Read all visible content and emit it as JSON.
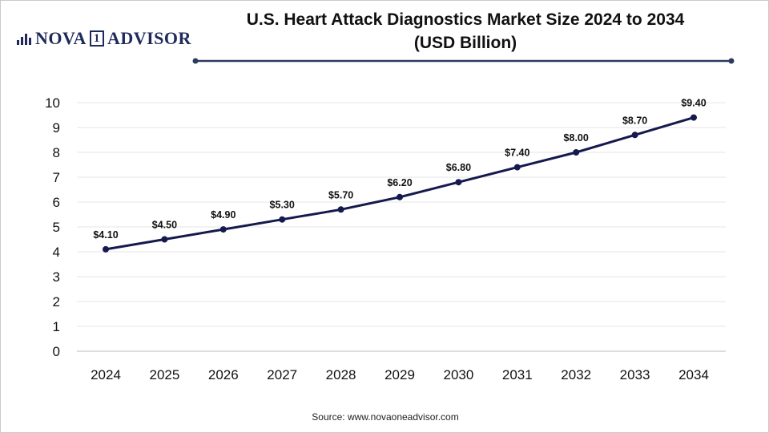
{
  "brand": {
    "logo_part1": "NOVA",
    "logo_part2": "1",
    "logo_part3": "ADVISOR"
  },
  "colors": {
    "line": "#151a4e",
    "grid": "#e6e6e6",
    "rule": "#2b3a5e"
  },
  "chart_data": {
    "type": "line",
    "title": "U.S. Heart Attack Diagnostics Market Size 2024 to 2034",
    "subtitle": "(USD Billion)",
    "categories": [
      "2024",
      "2025",
      "2026",
      "2027",
      "2028",
      "2029",
      "2030",
      "2031",
      "2032",
      "2033",
      "2034"
    ],
    "series": [
      {
        "name": "Market Size",
        "values": [
          4.1,
          4.5,
          4.9,
          5.3,
          5.7,
          6.2,
          6.8,
          7.4,
          8.0,
          8.7,
          9.4
        ]
      }
    ],
    "data_labels": [
      "$4.10",
      "$4.50",
      "$4.90",
      "$5.30",
      "$5.70",
      "$6.20",
      "$6.80",
      "$7.40",
      "$8.00",
      "$8.70",
      "$9.40"
    ],
    "yticks": [
      "0",
      "1",
      "2",
      "3",
      "4",
      "5",
      "6",
      "7",
      "8",
      "9",
      "10"
    ],
    "ylim": [
      0,
      10
    ],
    "grid": true,
    "xlabel": "",
    "ylabel": ""
  },
  "footer": {
    "source": "Source: www.novaoneadvisor.com"
  }
}
